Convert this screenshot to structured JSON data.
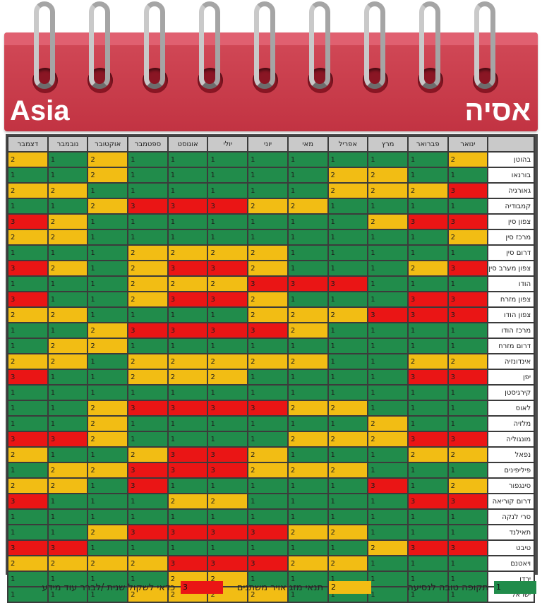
{
  "header": {
    "title_en": "Asia",
    "title_he": "אסיה"
  },
  "months": [
    "ינואר",
    "פברואר",
    "מרץ",
    "אפריל",
    "מאי",
    "יוני",
    "יולי",
    "אוגוסט",
    "ספטמבר",
    "אוקטובר",
    "נובמבר",
    "דצמבר"
  ],
  "colors": {
    "1": "#218c4b",
    "2": "#f2bd14",
    "3": "#ea1515",
    "header": "#c9c9c9",
    "cover": "#c23342"
  },
  "rows": [
    {
      "country": "בהוטן",
      "values": [
        2,
        1,
        1,
        1,
        1,
        1,
        1,
        1,
        1,
        2,
        1,
        2
      ]
    },
    {
      "country": "בורנאו",
      "values": [
        1,
        1,
        2,
        2,
        1,
        1,
        1,
        1,
        1,
        2,
        1,
        1
      ]
    },
    {
      "country": "גאורגיה",
      "values": [
        3,
        2,
        2,
        2,
        1,
        1,
        1,
        1,
        1,
        1,
        2,
        2
      ]
    },
    {
      "country": "קמבודיה",
      "values": [
        1,
        1,
        1,
        1,
        2,
        2,
        3,
        3,
        3,
        2,
        1,
        1
      ]
    },
    {
      "country": "צפון סין",
      "values": [
        3,
        3,
        2,
        1,
        1,
        1,
        1,
        1,
        1,
        1,
        2,
        3
      ]
    },
    {
      "country": "מרכז סין",
      "values": [
        2,
        1,
        1,
        1,
        1,
        1,
        1,
        1,
        1,
        1,
        2,
        2
      ]
    },
    {
      "country": "דרום סין",
      "values": [
        1,
        1,
        1,
        1,
        1,
        2,
        2,
        2,
        2,
        1,
        1,
        1
      ]
    },
    {
      "country": "צפון מערב סין",
      "values": [
        3,
        2,
        1,
        1,
        1,
        2,
        3,
        3,
        2,
        1,
        2,
        3
      ]
    },
    {
      "country": "הודו",
      "values": [
        1,
        1,
        1,
        3,
        3,
        3,
        2,
        2,
        2,
        1,
        1,
        1
      ]
    },
    {
      "country": "צפון מזרח",
      "values": [
        3,
        3,
        1,
        1,
        1,
        2,
        3,
        3,
        2,
        1,
        1,
        3
      ]
    },
    {
      "country": "צפון הודו",
      "values": [
        3,
        3,
        3,
        2,
        2,
        2,
        1,
        1,
        1,
        1,
        2,
        2
      ]
    },
    {
      "country": "מרכז הודו",
      "values": [
        1,
        1,
        1,
        1,
        2,
        3,
        3,
        3,
        3,
        2,
        1,
        1
      ]
    },
    {
      "country": "דרום מזרח",
      "values": [
        1,
        1,
        1,
        1,
        1,
        1,
        1,
        1,
        1,
        2,
        2,
        1
      ]
    },
    {
      "country": "אינדונזיה",
      "values": [
        2,
        2,
        1,
        1,
        2,
        2,
        2,
        2,
        2,
        1,
        2,
        2
      ]
    },
    {
      "country": "יפן",
      "values": [
        3,
        3,
        1,
        1,
        1,
        1,
        2,
        2,
        2,
        1,
        1,
        3
      ]
    },
    {
      "country": "קירגיסטן",
      "values": [
        1,
        1,
        1,
        1,
        1,
        1,
        1,
        1,
        1,
        1,
        1,
        1
      ]
    },
    {
      "country": "לאוס",
      "values": [
        1,
        1,
        1,
        2,
        2,
        3,
        3,
        3,
        3,
        2,
        1,
        1
      ]
    },
    {
      "country": "מלזיה",
      "values": [
        1,
        1,
        2,
        1,
        1,
        1,
        1,
        1,
        1,
        2,
        1,
        1
      ]
    },
    {
      "country": "מונגוליה",
      "values": [
        3,
        3,
        2,
        2,
        2,
        1,
        1,
        1,
        1,
        2,
        3,
        3
      ]
    },
    {
      "country": "נפאל",
      "values": [
        2,
        2,
        1,
        1,
        1,
        2,
        3,
        3,
        2,
        1,
        1,
        2
      ]
    },
    {
      "country": "פיליפינים",
      "values": [
        1,
        1,
        1,
        2,
        2,
        2,
        3,
        3,
        3,
        2,
        2,
        1
      ]
    },
    {
      "country": "סינגפור",
      "values": [
        2,
        1,
        3,
        1,
        1,
        1,
        1,
        1,
        3,
        1,
        2,
        2
      ]
    },
    {
      "country": "דרום קוריאה",
      "values": [
        3,
        3,
        1,
        1,
        1,
        1,
        2,
        2,
        1,
        1,
        1,
        3
      ]
    },
    {
      "country": "סרי לנקה",
      "values": [
        1,
        1,
        1,
        1,
        1,
        1,
        1,
        1,
        1,
        1,
        1,
        1
      ]
    },
    {
      "country": "תאילנד",
      "values": [
        1,
        1,
        1,
        2,
        2,
        3,
        3,
        3,
        3,
        2,
        1,
        1
      ]
    },
    {
      "country": "טיבט",
      "values": [
        3,
        3,
        2,
        1,
        1,
        1,
        1,
        1,
        1,
        1,
        3,
        3
      ]
    },
    {
      "country": "ויאטנם",
      "values": [
        1,
        1,
        1,
        2,
        2,
        3,
        3,
        3,
        2,
        2,
        2,
        2
      ]
    },
    {
      "country": "ירדן",
      "values": [
        1,
        1,
        1,
        1,
        1,
        1,
        2,
        2,
        1,
        1,
        1,
        1
      ]
    },
    {
      "country": "ישראל",
      "values": [
        1,
        1,
        1,
        1,
        1,
        2,
        2,
        2,
        2,
        1,
        1,
        1
      ]
    }
  ],
  "legend": [
    {
      "value": "1",
      "text": "תקופה טובה לנסיעה"
    },
    {
      "value": "2",
      "text": "תנאי מזג אויר משתנים"
    },
    {
      "value": "3",
      "text": "כדאי לשקול שנית /לברר עוד מידע"
    }
  ]
}
